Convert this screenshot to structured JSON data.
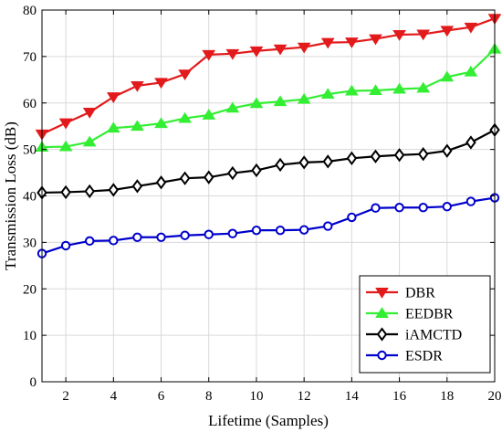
{
  "chart_data": {
    "type": "line",
    "xlabel": "Lifetime (Samples)",
    "ylabel": "Transmission Loss (dB)",
    "xlim": [
      1,
      20
    ],
    "ylim": [
      0,
      80
    ],
    "xticks": [
      2,
      4,
      6,
      8,
      10,
      12,
      14,
      16,
      18,
      20
    ],
    "yticks": [
      0,
      10,
      20,
      30,
      40,
      50,
      60,
      70,
      80
    ],
    "grid": true,
    "legend_position": "bottom-right",
    "x": [
      1,
      2,
      3,
      4,
      5,
      6,
      7,
      8,
      9,
      10,
      11,
      12,
      13,
      14,
      15,
      16,
      17,
      18,
      19,
      20
    ],
    "series": [
      {
        "name": "DBR",
        "color": "#e31a1c",
        "marker": "triangle-down",
        "values": [
          53.3,
          55.7,
          58.0,
          61.3,
          63.7,
          64.4,
          66.2,
          70.4,
          70.6,
          71.2,
          71.6,
          72.0,
          73.0,
          73.1,
          73.8,
          74.7,
          74.8,
          75.6,
          76.3,
          78.2
        ]
      },
      {
        "name": "EEDBR",
        "color": "#33ee33",
        "marker": "triangle-up",
        "values": [
          50.5,
          50.6,
          51.6,
          54.6,
          55.0,
          55.6,
          56.7,
          57.4,
          58.9,
          59.9,
          60.3,
          60.8,
          61.9,
          62.6,
          62.7,
          63.0,
          63.2,
          65.6,
          66.7,
          71.6
        ]
      },
      {
        "name": "iAMCTD",
        "color": "#000000",
        "marker": "diamond",
        "values": [
          40.7,
          40.8,
          41.0,
          41.3,
          42.1,
          42.9,
          43.8,
          44.0,
          44.9,
          45.5,
          46.7,
          47.2,
          47.4,
          48.1,
          48.5,
          48.8,
          49.0,
          49.7,
          51.5,
          54.2
        ]
      },
      {
        "name": "ESDR",
        "color": "#0000cc",
        "marker": "circle",
        "values": [
          27.6,
          29.3,
          30.3,
          30.4,
          31.1,
          31.1,
          31.5,
          31.7,
          31.9,
          32.6,
          32.6,
          32.7,
          33.5,
          35.4,
          37.4,
          37.5,
          37.5,
          37.7,
          38.8,
          39.6
        ]
      }
    ]
  }
}
